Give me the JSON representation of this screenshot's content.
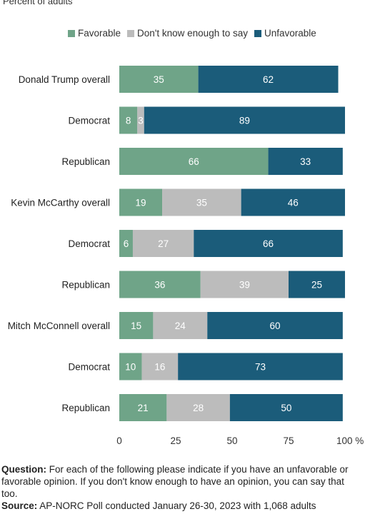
{
  "subtitle": "Percent of adults",
  "colors": {
    "favorable": "#6fa488",
    "dont_know": "#bcbcbc",
    "unfavorable": "#1b5c7a"
  },
  "legend": [
    {
      "label": "Favorable",
      "color": "#6fa488"
    },
    {
      "label": "Don't know enough to say",
      "color": "#bcbcbc"
    },
    {
      "label": "Unfavorable",
      "color": "#1b5c7a"
    }
  ],
  "chart_data": {
    "type": "bar",
    "orientation": "horizontal-stacked",
    "categories": [
      "Donald Trump overall",
      "Democrat",
      "Republican",
      "Kevin McCarthy overall",
      "Democrat",
      "Republican",
      "Mitch McConnell overall",
      "Democrat",
      "Republican"
    ],
    "series": [
      {
        "name": "Favorable",
        "values": [
          35,
          8,
          66,
          19,
          6,
          36,
          15,
          10,
          21
        ],
        "labels": [
          "35",
          "8",
          "66",
          "19",
          "6",
          "36",
          "15",
          "10",
          "21"
        ]
      },
      {
        "name": "Don't know enough to say",
        "values": [
          0,
          3,
          0,
          35,
          27,
          39,
          24,
          16,
          28
        ],
        "labels": [
          "",
          "3",
          "",
          "35",
          "27",
          "39",
          "24",
          "16",
          "28"
        ]
      },
      {
        "name": "Unfavorable",
        "values": [
          62,
          89,
          33,
          46,
          66,
          25,
          60,
          73,
          50
        ],
        "labels": [
          "62",
          "89",
          "33",
          "46",
          "66",
          "25",
          "60",
          "73",
          "50"
        ]
      }
    ],
    "x_ticks": [
      "0",
      "25",
      "50",
      "75",
      "100 %"
    ],
    "xlim": [
      0,
      100
    ],
    "grid": false,
    "legend_position": "top"
  },
  "notes": {
    "question_label": "Question:",
    "question_text": "For each of the following please indicate if you have an unfavorable or favorable opinion. If you don't know enough to have an opinion, you can say that too.",
    "source_label": "Source:",
    "source_text": "AP-NORC Poll conducted January 26-30, 2023 with 1,068 adults"
  }
}
